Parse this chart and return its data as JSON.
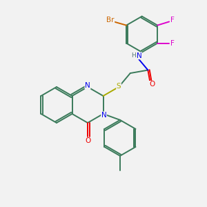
{
  "background_color": "#f2f2f2",
  "atom_colors": {
    "C": "#3a7a5a",
    "N": "#0000ee",
    "O": "#ee0000",
    "S": "#aaaa00",
    "Br": "#cc6600",
    "F": "#dd00cc",
    "H": "#557777"
  },
  "figsize": [
    3.0,
    3.0
  ],
  "dpi": 100
}
